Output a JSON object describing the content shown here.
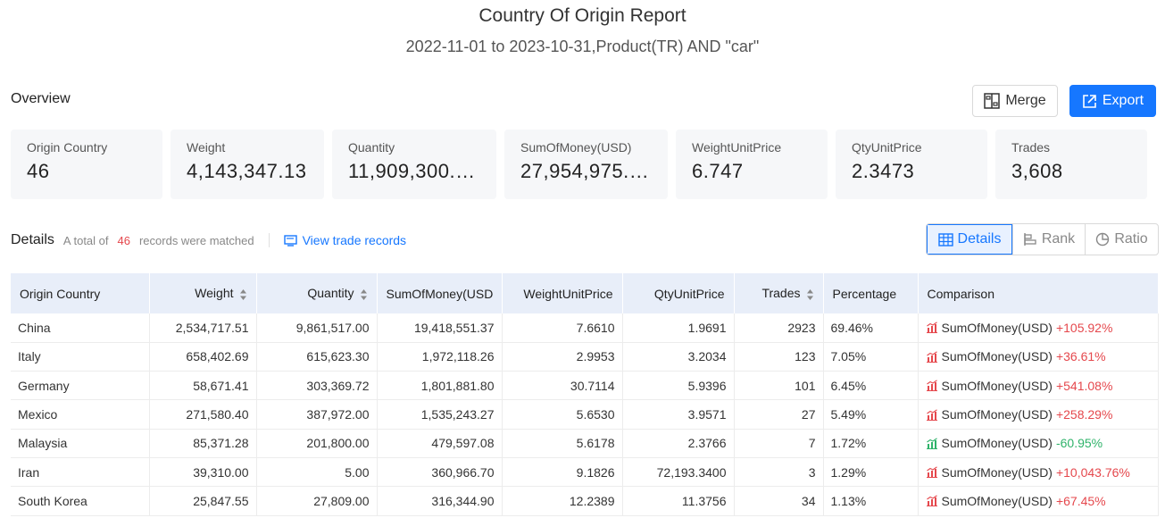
{
  "report": {
    "title": "Country Of Origin Report",
    "subtitle": "2022-11-01 to 2023-10-31,Product(TR) AND \"car\""
  },
  "overview": {
    "label": "Overview",
    "merge_label": "Merge",
    "export_label": "Export",
    "stats": [
      {
        "label": "Origin Country",
        "value": "46"
      },
      {
        "label": "Weight",
        "value": "4,143,347.13"
      },
      {
        "label": "Quantity",
        "value": "11,909,300.…"
      },
      {
        "label": "SumOfMoney(USD)",
        "value": "27,954,975.…"
      },
      {
        "label": "WeightUnitPrice",
        "value": "6.747"
      },
      {
        "label": "QtyUnitPrice",
        "value": "2.3473"
      },
      {
        "label": "Trades",
        "value": "3,608"
      }
    ]
  },
  "details": {
    "label": "Details",
    "total_prefix": "A total of",
    "count": "46",
    "total_suffix": "records were matched",
    "view_link": "View trade records",
    "tabs": [
      "Details",
      "Rank",
      "Ratio"
    ]
  },
  "table": {
    "headers": [
      "Origin Country",
      "Weight",
      "Quantity",
      "SumOfMoney(USD",
      "WeightUnitPrice",
      "QtyUnitPrice",
      "Trades",
      "Percentage",
      "Comparison"
    ],
    "rows": [
      {
        "country": "China",
        "weight": "2,534,717.51",
        "quantity": "9,861,517.00",
        "sum": "19,418,551.37",
        "wup": "7.6610",
        "qup": "1.9691",
        "trades": "2923",
        "pct": "69.46%",
        "cmp_label": "SumOfMoney(USD)",
        "cmp_value": "+105.92%",
        "trend": "up"
      },
      {
        "country": "Italy",
        "weight": "658,402.69",
        "quantity": "615,623.30",
        "sum": "1,972,118.26",
        "wup": "2.9953",
        "qup": "3.2034",
        "trades": "123",
        "pct": "7.05%",
        "cmp_label": "SumOfMoney(USD)",
        "cmp_value": "+36.61%",
        "trend": "up"
      },
      {
        "country": "Germany",
        "weight": "58,671.41",
        "quantity": "303,369.72",
        "sum": "1,801,881.80",
        "wup": "30.7114",
        "qup": "5.9396",
        "trades": "101",
        "pct": "6.45%",
        "cmp_label": "SumOfMoney(USD)",
        "cmp_value": "+541.08%",
        "trend": "up"
      },
      {
        "country": "Mexico",
        "weight": "271,580.40",
        "quantity": "387,972.00",
        "sum": "1,535,243.27",
        "wup": "5.6530",
        "qup": "3.9571",
        "trades": "27",
        "pct": "5.49%",
        "cmp_label": "SumOfMoney(USD)",
        "cmp_value": "+258.29%",
        "trend": "up"
      },
      {
        "country": "Malaysia",
        "weight": "85,371.28",
        "quantity": "201,800.00",
        "sum": "479,597.08",
        "wup": "5.6178",
        "qup": "2.3766",
        "trades": "7",
        "pct": "1.72%",
        "cmp_label": "SumOfMoney(USD)",
        "cmp_value": "-60.95%",
        "trend": "down"
      },
      {
        "country": "Iran",
        "weight": "39,310.00",
        "quantity": "5.00",
        "sum": "360,966.70",
        "wup": "9.1826",
        "qup": "72,193.3400",
        "trades": "3",
        "pct": "1.29%",
        "cmp_label": "SumOfMoney(USD)",
        "cmp_value": "+10,043.76%",
        "trend": "up"
      },
      {
        "country": "South Korea",
        "weight": "25,847.55",
        "quantity": "27,809.00",
        "sum": "316,344.90",
        "wup": "12.2389",
        "qup": "11.3756",
        "trades": "34",
        "pct": "1.13%",
        "cmp_label": "SumOfMoney(USD)",
        "cmp_value": "+67.45%",
        "trend": "up"
      }
    ]
  },
  "colors": {
    "accent": "#1677ff",
    "up": "#e5484d",
    "down": "#2fb36a",
    "header_bg": "#e8eef9"
  }
}
